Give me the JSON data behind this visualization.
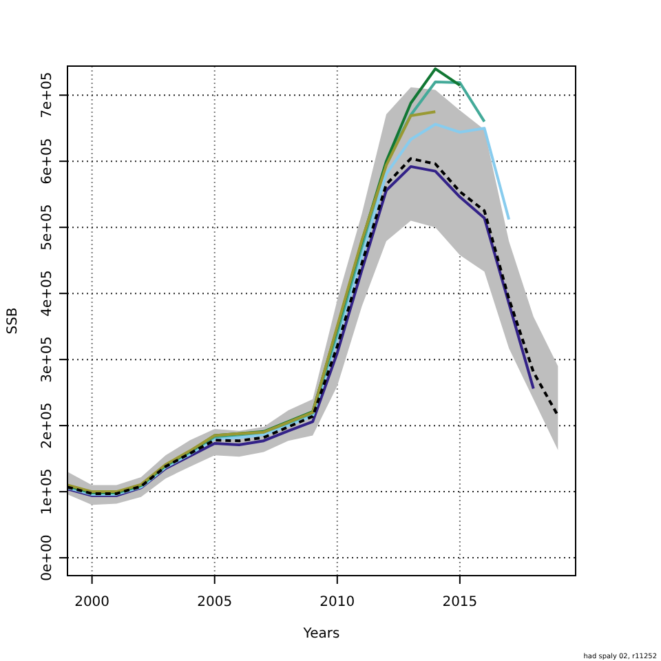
{
  "chart_data": {
    "type": "line",
    "xlabel": "Years",
    "ylabel": "SSB",
    "xlim": [
      1999,
      2019.72
    ],
    "ylim": [
      -27000,
      744000
    ],
    "xticks": [
      2000,
      2005,
      2010,
      2015
    ],
    "yticks": [
      {
        "value": 0,
        "label": "0e+00"
      },
      {
        "value": 100000,
        "label": "1e+05"
      },
      {
        "value": 200000,
        "label": "2e+05"
      },
      {
        "value": 300000,
        "label": "3e+05"
      },
      {
        "value": 400000,
        "label": "4e+05"
      },
      {
        "value": 500000,
        "label": "5e+05"
      },
      {
        "value": 600000,
        "label": "6e+05"
      },
      {
        "value": 700000,
        "label": "7e+05"
      }
    ],
    "grid": true,
    "series": [
      {
        "color": "#000000",
        "line_style": "dashed",
        "x": [
          1999,
          2000,
          2001,
          2002,
          2003,
          2004,
          2005,
          2006,
          2007,
          2008,
          2009,
          2010,
          2011,
          2012,
          2013,
          2014,
          2015,
          2016,
          2017,
          2018,
          2019
        ],
        "values": [
          107000,
          97000,
          97000,
          108000,
          138000,
          158000,
          178000,
          177000,
          182000,
          198000,
          214000,
          320000,
          445000,
          565000,
          604000,
          596000,
          554000,
          525000,
          392000,
          281000,
          215000
        ],
        "lower": [
          96000,
          80000,
          82000,
          92000,
          120000,
          138000,
          155000,
          153000,
          160000,
          177000,
          185000,
          260000,
          380000,
          479000,
          510000,
          500000,
          458000,
          433000,
          317000,
          240000,
          163000
        ],
        "upper": [
          130000,
          110000,
          110000,
          122000,
          155000,
          178000,
          195000,
          192000,
          198000,
          223000,
          240000,
          390000,
          520000,
          671000,
          712000,
          708000,
          677000,
          648000,
          479000,
          365000,
          290000
        ]
      },
      {
        "color": "#332288",
        "line_style": "solid",
        "x": [
          1999,
          2000,
          2001,
          2002,
          2003,
          2004,
          2005,
          2006,
          2007,
          2008,
          2009,
          2010,
          2011,
          2012,
          2013,
          2014,
          2015,
          2016,
          2017,
          2018
        ],
        "values": [
          104000,
          94000,
          94000,
          106000,
          135000,
          154000,
          173000,
          171000,
          177000,
          192000,
          206000,
          310000,
          435000,
          556000,
          592000,
          585000,
          546000,
          514000,
          385000,
          256000
        ]
      },
      {
        "color": "#88ccee",
        "line_style": "solid",
        "x": [
          1999,
          2000,
          2001,
          2002,
          2003,
          2004,
          2005,
          2006,
          2007,
          2008,
          2009,
          2010,
          2011,
          2012,
          2013,
          2014,
          2015,
          2016,
          2017
        ],
        "values": [
          106000,
          96000,
          96000,
          107000,
          137000,
          157000,
          180000,
          182000,
          186000,
          200000,
          215000,
          330000,
          455000,
          581000,
          633000,
          656000,
          644000,
          650000,
          512000
        ]
      },
      {
        "color": "#44aa99",
        "line_style": "solid",
        "x": [
          1999,
          2000,
          2001,
          2002,
          2003,
          2004,
          2005,
          2006,
          2007,
          2008,
          2009,
          2010,
          2011,
          2012,
          2013,
          2014,
          2015,
          2016
        ],
        "values": [
          108000,
          98000,
          98000,
          109000,
          139000,
          160000,
          183000,
          186000,
          190000,
          204000,
          219000,
          340000,
          470000,
          598000,
          670000,
          720000,
          719000,
          660000
        ]
      },
      {
        "color": "#117733",
        "line_style": "solid",
        "x": [
          1999,
          2000,
          2001,
          2002,
          2003,
          2004,
          2005,
          2006,
          2007,
          2008,
          2009,
          2010,
          2011,
          2012,
          2013,
          2014,
          2015
        ],
        "values": [
          109000,
          99000,
          99000,
          110000,
          140000,
          161000,
          185000,
          188000,
          191000,
          206000,
          221000,
          348000,
          478000,
          600000,
          688000,
          740000,
          715000
        ]
      },
      {
        "color": "#999933",
        "line_style": "solid",
        "x": [
          1999,
          2000,
          2001,
          2002,
          2003,
          2004,
          2005,
          2006,
          2007,
          2008,
          2009,
          2010,
          2011,
          2012,
          2013,
          2014
        ],
        "values": [
          110000,
          100000,
          100000,
          111000,
          141000,
          162000,
          185000,
          188000,
          190000,
          205000,
          220000,
          350000,
          480000,
          594000,
          669000,
          675000
        ]
      }
    ],
    "annotations": [
      "had spaly 02, r11252"
    ]
  }
}
